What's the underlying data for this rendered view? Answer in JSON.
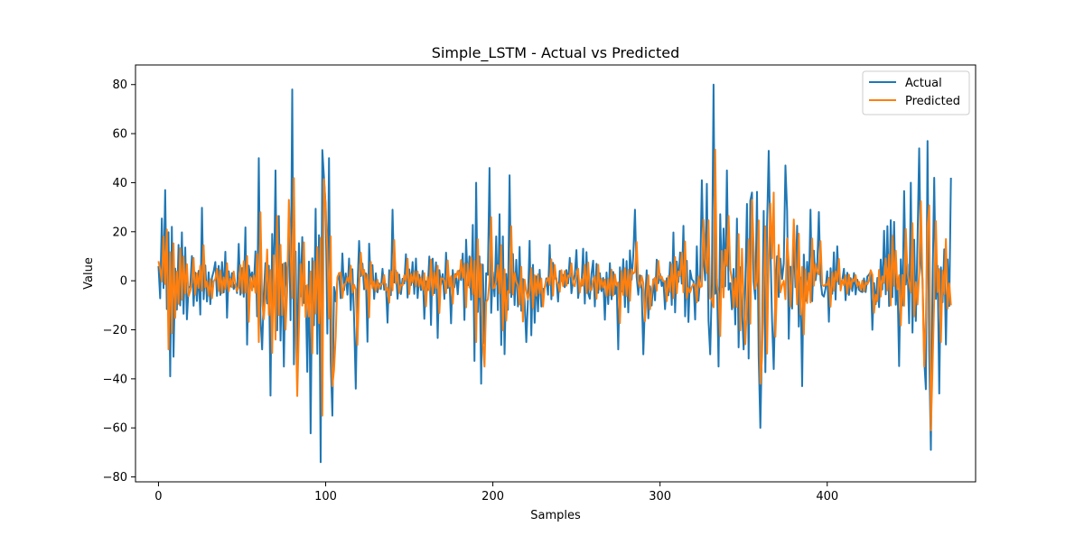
{
  "chart_data": {
    "type": "line",
    "title": "Simple_LSTM - Actual vs Predicted",
    "xlabel": "Samples",
    "ylabel": "Value",
    "xlim": [
      -13.75,
      488.75
    ],
    "ylim": [
      -82,
      88
    ],
    "xticks": [
      0,
      100,
      200,
      300,
      400
    ],
    "yticks": [
      -80,
      -60,
      -40,
      -20,
      0,
      20,
      40,
      60,
      80
    ],
    "legend_position": "top-right",
    "colors": {
      "actual": "#1f77b4",
      "predicted": "#ff7f0e"
    },
    "series_generation": {
      "n": 475,
      "seed": 7
    },
    "anchors": {
      "actual": [
        [
          0,
          6
        ],
        [
          3,
          -3
        ],
        [
          4,
          37
        ],
        [
          7,
          -39
        ],
        [
          8,
          22
        ],
        [
          9,
          -31
        ],
        [
          60,
          50
        ],
        [
          62,
          -28
        ],
        [
          70,
          45
        ],
        [
          75,
          -35
        ],
        [
          80,
          78
        ],
        [
          83,
          -38
        ],
        [
          97,
          -74
        ],
        [
          99,
          42
        ],
        [
          102,
          50
        ],
        [
          104,
          -55
        ],
        [
          118,
          -44
        ],
        [
          140,
          29
        ],
        [
          163,
          -18
        ],
        [
          183,
          -16
        ],
        [
          190,
          40
        ],
        [
          193,
          -42
        ],
        [
          198,
          46
        ],
        [
          210,
          43
        ],
        [
          220,
          -25
        ],
        [
          275,
          -28
        ],
        [
          285,
          29
        ],
        [
          290,
          -30
        ],
        [
          325,
          41
        ],
        [
          330,
          -30
        ],
        [
          332,
          80
        ],
        [
          335,
          -35
        ],
        [
          340,
          45
        ],
        [
          350,
          -28
        ],
        [
          355,
          36
        ],
        [
          360,
          -60
        ],
        [
          365,
          53
        ],
        [
          368,
          -36
        ],
        [
          375,
          47
        ],
        [
          385,
          -43
        ],
        [
          390,
          29
        ],
        [
          395,
          28
        ],
        [
          427,
          -20
        ],
        [
          440,
          24
        ],
        [
          450,
          40
        ],
        [
          455,
          54
        ],
        [
          458,
          -32
        ],
        [
          460,
          57
        ],
        [
          462,
          -69
        ],
        [
          464,
          42
        ],
        [
          467,
          -46
        ],
        [
          471,
          -26
        ],
        [
          474,
          42
        ]
      ],
      "predicted": [
        [
          0,
          8
        ],
        [
          3,
          18
        ],
        [
          6,
          -28
        ],
        [
          60,
          -25
        ],
        [
          70,
          -24
        ],
        [
          78,
          33
        ],
        [
          83,
          -47
        ],
        [
          98,
          -55
        ],
        [
          100,
          30
        ],
        [
          104,
          -43
        ],
        [
          190,
          -25
        ],
        [
          195,
          -35
        ],
        [
          355,
          33
        ],
        [
          360,
          -42
        ],
        [
          368,
          36
        ],
        [
          380,
          25
        ],
        [
          458,
          -35
        ],
        [
          460,
          22
        ],
        [
          462,
          -61
        ],
        [
          471,
          17
        ],
        [
          474,
          -10
        ]
      ]
    }
  },
  "legend": {
    "actual_label": "Actual",
    "predicted_label": "Predicted"
  }
}
